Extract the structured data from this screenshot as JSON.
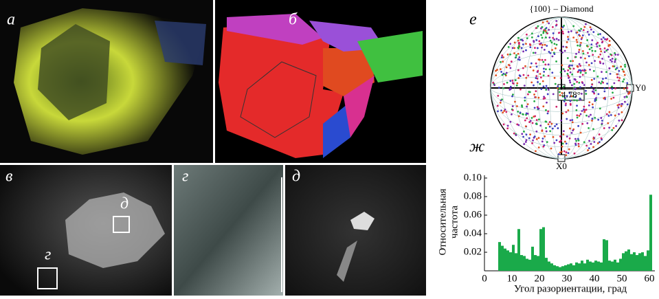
{
  "panel_labels": {
    "a": "а",
    "b": "б",
    "v": "в",
    "g": "г",
    "d": "д",
    "e": "е",
    "zh": "ж"
  },
  "inset_labels": {
    "g": "г",
    "d": "д"
  },
  "pole_figure": {
    "title": "{100} – Diamond",
    "angle": "4.78°",
    "y_axis": "Y0",
    "x_axis": "X0"
  },
  "chart_data": {
    "type": "histogram",
    "color": "#1aaa4a",
    "ylabel": [
      "Относительная",
      "частота"
    ],
    "xlabel": "Угол разориентации, град",
    "bins": [
      5,
      6,
      7,
      8,
      9,
      10,
      11,
      12,
      13,
      14,
      15,
      16,
      17,
      18,
      19,
      20,
      21,
      22,
      23,
      24,
      25,
      26,
      27,
      28,
      29,
      30,
      31,
      32,
      33,
      34,
      35,
      36,
      37,
      38,
      39,
      40,
      41,
      42,
      43,
      44,
      45,
      46,
      47,
      48,
      49,
      50,
      51,
      52,
      53,
      54,
      55,
      56,
      57,
      58,
      59,
      60,
      61
    ],
    "values": [
      0.031,
      0.027,
      0.024,
      0.022,
      0.02,
      0.028,
      0.019,
      0.045,
      0.017,
      0.016,
      0.013,
      0.012,
      0.026,
      0.017,
      0.016,
      0.045,
      0.047,
      0.014,
      0.01,
      0.008,
      0.006,
      0.005,
      0.004,
      0.005,
      0.006,
      0.007,
      0.008,
      0.006,
      0.009,
      0.008,
      0.011,
      0.008,
      0.012,
      0.01,
      0.009,
      0.011,
      0.01,
      0.009,
      0.034,
      0.033,
      0.011,
      0.01,
      0.012,
      0.009,
      0.013,
      0.019,
      0.021,
      0.023,
      0.018,
      0.02,
      0.017,
      0.019,
      0.02,
      0.016,
      0.022,
      0.082
    ],
    "xlim": [
      0,
      62
    ],
    "ylim": [
      0,
      0.1
    ],
    "xticks": [
      0,
      10,
      20,
      30,
      40,
      50,
      60
    ],
    "yticks": [
      0.02,
      0.04,
      0.06,
      0.08,
      {
        "value": 0.1,
        "label": "0.10"
      }
    ]
  }
}
